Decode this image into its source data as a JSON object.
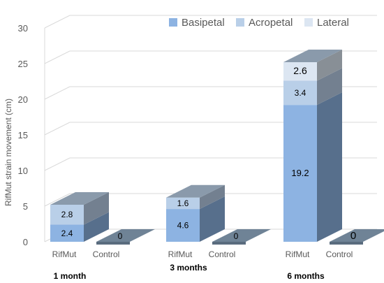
{
  "chart_data": {
    "type": "bar",
    "stacked": true,
    "three_d": true,
    "ylabel": "RifMut strain movement (cm)",
    "xlabel": "",
    "ylim": [
      0,
      30
    ],
    "yticks": [
      0,
      5,
      10,
      15,
      20,
      25,
      30
    ],
    "grid": true,
    "legend_position": "top-right",
    "groups": [
      {
        "label": "1 month",
        "bars": [
          {
            "label": "RifMut",
            "segments": [
              2.4,
              2.8,
              0
            ]
          },
          {
            "label": "Control",
            "segments": [
              0,
              0,
              0
            ],
            "total_label": "0"
          }
        ]
      },
      {
        "label": "3 months",
        "bars": [
          {
            "label": "RifMut",
            "segments": [
              4.6,
              1.6,
              0
            ]
          },
          {
            "label": "Control",
            "segments": [
              0,
              0,
              0
            ],
            "total_label": "0"
          }
        ]
      },
      {
        "label": "6 months",
        "bars": [
          {
            "label": "RifMut",
            "segments": [
              19.2,
              3.4,
              2.6
            ]
          },
          {
            "label": "Control",
            "segments": [
              0,
              0,
              0
            ],
            "total_label": "0"
          }
        ]
      }
    ],
    "series": [
      {
        "name": "Basipetal",
        "color": "#8db3e2"
      },
      {
        "name": "Acropetal",
        "color": "#b9cfe8"
      },
      {
        "name": "Lateral",
        "color": "#dce6f2"
      }
    ]
  }
}
